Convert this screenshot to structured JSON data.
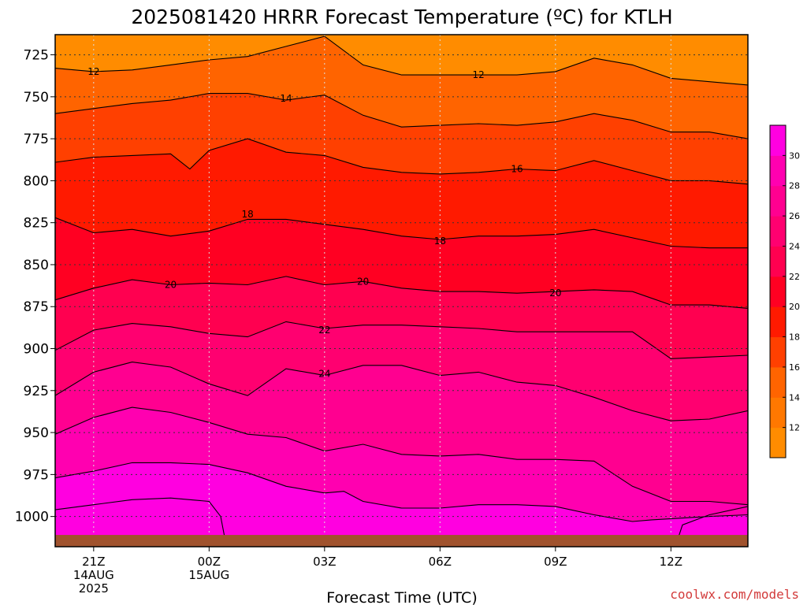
{
  "chart_data": {
    "type": "contour",
    "title": "2025081420 HRRR Forecast Temperature (ºC) for KTLH",
    "xlabel": "Forecast Time (UTC)",
    "ylabel": "",
    "credit": "coolwx.com/models",
    "x_unit_hours_from_start": true,
    "xlim": [
      -1,
      17
    ],
    "ylim": [
      1018,
      713
    ],
    "y_ticks": [
      725,
      750,
      775,
      800,
      825,
      850,
      875,
      900,
      925,
      950,
      975,
      1000
    ],
    "x_ticks": [
      {
        "hour": 0,
        "lines": [
          "21Z",
          "14AUG",
          "2025"
        ]
      },
      {
        "hour": 3,
        "lines": [
          "00Z",
          "15AUG"
        ]
      },
      {
        "hour": 6,
        "lines": [
          "03Z"
        ]
      },
      {
        "hour": 9,
        "lines": [
          "06Z"
        ]
      },
      {
        "hour": 12,
        "lines": [
          "09Z"
        ]
      },
      {
        "hour": 15,
        "lines": [
          "12Z"
        ]
      }
    ],
    "surface_pressure_hpa": 1011,
    "surface_color": "#a0522d",
    "colorbar": {
      "levels": [
        10,
        12,
        14,
        16,
        18,
        20,
        22,
        24,
        26,
        28,
        30,
        32
      ],
      "labels": [
        "12",
        "14",
        "16",
        "18",
        "20",
        "22",
        "24",
        "26",
        "28",
        "30"
      ],
      "colors": [
        "#ff8c00",
        "#ff7800",
        "#ff6400",
        "#ff4000",
        "#ff1a00",
        "#ff0022",
        "#ff0050",
        "#ff0070",
        "#ff0090",
        "#ff00b0",
        "#ff00e0"
      ]
    },
    "grid": true,
    "contours": [
      {
        "level": 12,
        "fill_index": 0,
        "points": [
          [
            -1,
            733
          ],
          [
            0,
            735
          ],
          [
            1,
            734
          ],
          [
            2,
            731
          ],
          [
            3,
            728
          ],
          [
            4,
            726
          ],
          [
            5,
            720
          ],
          [
            6,
            714
          ],
          [
            7,
            731
          ],
          [
            8,
            737
          ],
          [
            9,
            737
          ],
          [
            10,
            737
          ],
          [
            11,
            737
          ],
          [
            12,
            735
          ],
          [
            13,
            727
          ],
          [
            14,
            731
          ],
          [
            15,
            739
          ],
          [
            16,
            741
          ],
          [
            17,
            743
          ]
        ],
        "labels": [
          {
            "hour": 0,
            "p": 735,
            "text": "12"
          },
          {
            "hour": 10,
            "p": 737,
            "text": "12"
          }
        ]
      },
      {
        "level": 14,
        "fill_index": 1,
        "points": [
          [
            -1,
            760
          ],
          [
            0,
            757
          ],
          [
            1,
            754
          ],
          [
            2,
            752
          ],
          [
            3,
            748
          ],
          [
            4,
            748
          ],
          [
            5,
            752
          ],
          [
            6,
            749
          ],
          [
            7,
            761
          ],
          [
            8,
            768
          ],
          [
            9,
            767
          ],
          [
            10,
            766
          ],
          [
            11,
            767
          ],
          [
            12,
            765
          ],
          [
            13,
            760
          ],
          [
            14,
            764
          ],
          [
            15,
            771
          ],
          [
            16,
            771
          ],
          [
            17,
            775
          ]
        ],
        "labels": [
          {
            "hour": 5,
            "p": 751,
            "text": "14"
          }
        ]
      },
      {
        "level": 16,
        "fill_index": 2,
        "points": [
          [
            -1,
            789
          ],
          [
            0,
            786
          ],
          [
            1,
            785
          ],
          [
            2,
            784
          ],
          [
            2.5,
            793
          ],
          [
            3,
            782
          ],
          [
            4,
            775
          ],
          [
            5,
            783
          ],
          [
            6,
            785
          ],
          [
            7,
            792
          ],
          [
            8,
            795
          ],
          [
            9,
            796
          ],
          [
            10,
            795
          ],
          [
            11,
            793
          ],
          [
            12,
            794
          ],
          [
            13,
            788
          ],
          [
            14,
            794
          ],
          [
            15,
            800
          ],
          [
            16,
            800
          ],
          [
            17,
            802
          ]
        ],
        "labels": [
          {
            "hour": 11,
            "p": 793,
            "text": "16"
          }
        ]
      },
      {
        "level": 18,
        "fill_index": 3,
        "points": [
          [
            -1,
            822
          ],
          [
            0,
            831
          ],
          [
            1,
            829
          ],
          [
            2,
            833
          ],
          [
            3,
            830
          ],
          [
            4,
            823
          ],
          [
            5,
            823
          ],
          [
            6,
            826
          ],
          [
            7,
            829
          ],
          [
            8,
            833
          ],
          [
            9,
            835
          ],
          [
            10,
            833
          ],
          [
            11,
            833
          ],
          [
            12,
            832
          ],
          [
            13,
            829
          ],
          [
            14,
            834
          ],
          [
            15,
            839
          ],
          [
            16,
            840
          ],
          [
            17,
            840
          ]
        ],
        "labels": [
          {
            "hour": 4,
            "p": 820,
            "text": "18"
          },
          {
            "hour": 9,
            "p": 836,
            "text": "18"
          }
        ]
      },
      {
        "level": 20,
        "fill_index": 4,
        "points": [
          [
            -1,
            871
          ],
          [
            0,
            864
          ],
          [
            1,
            859
          ],
          [
            2,
            862
          ],
          [
            3,
            861
          ],
          [
            4,
            862
          ],
          [
            5,
            857
          ],
          [
            6,
            862
          ],
          [
            7,
            860
          ],
          [
            8,
            864
          ],
          [
            9,
            866
          ],
          [
            10,
            866
          ],
          [
            11,
            867
          ],
          [
            12,
            866
          ],
          [
            13,
            865
          ],
          [
            14,
            866
          ],
          [
            15,
            874
          ],
          [
            16,
            874
          ],
          [
            17,
            876
          ]
        ],
        "labels": [
          {
            "hour": 2,
            "p": 862,
            "text": "20"
          },
          {
            "hour": 7,
            "p": 860,
            "text": "20"
          },
          {
            "hour": 12,
            "p": 867,
            "text": "20"
          }
        ]
      },
      {
        "level": 22,
        "fill_index": 5,
        "points": [
          [
            -1,
            901
          ],
          [
            0,
            889
          ],
          [
            1,
            885
          ],
          [
            2,
            887
          ],
          [
            3,
            891
          ],
          [
            4,
            893
          ],
          [
            5,
            884
          ],
          [
            6,
            888
          ],
          [
            7,
            886
          ],
          [
            8,
            886
          ],
          [
            9,
            887
          ],
          [
            10,
            888
          ],
          [
            11,
            890
          ],
          [
            12,
            890
          ],
          [
            13,
            890
          ],
          [
            14,
            890
          ],
          [
            15,
            906
          ],
          [
            16,
            905
          ],
          [
            17,
            904
          ]
        ],
        "labels": [
          {
            "hour": 6,
            "p": 889,
            "text": "22"
          }
        ]
      },
      {
        "level": 24,
        "fill_index": 6,
        "points": [
          [
            -1,
            928
          ],
          [
            0,
            914
          ],
          [
            1,
            908
          ],
          [
            2,
            911
          ],
          [
            3,
            921
          ],
          [
            4,
            928
          ],
          [
            5,
            912
          ],
          [
            6,
            916
          ],
          [
            7,
            910
          ],
          [
            8,
            910
          ],
          [
            9,
            916
          ],
          [
            10,
            914
          ],
          [
            11,
            920
          ],
          [
            12,
            922
          ],
          [
            13,
            929
          ],
          [
            14,
            937
          ],
          [
            15,
            943
          ],
          [
            16,
            942
          ],
          [
            17,
            937
          ]
        ],
        "labels": [
          {
            "hour": 6,
            "p": 915,
            "text": "24"
          }
        ]
      },
      {
        "level": 26,
        "fill_index": 7,
        "points": [
          [
            -1,
            951
          ],
          [
            0,
            941
          ],
          [
            1,
            935
          ],
          [
            2,
            938
          ],
          [
            3,
            944
          ],
          [
            4,
            951
          ],
          [
            5,
            953
          ],
          [
            6,
            961
          ],
          [
            7,
            957
          ],
          [
            8,
            963
          ],
          [
            9,
            964
          ],
          [
            10,
            963
          ],
          [
            11,
            966
          ],
          [
            12,
            966
          ],
          [
            13,
            967
          ],
          [
            14,
            982
          ],
          [
            15,
            991
          ],
          [
            16,
            991
          ],
          [
            17,
            993
          ]
        ],
        "labels": []
      },
      {
        "level": 28,
        "fill_index": 8,
        "points": [
          [
            -1,
            977
          ],
          [
            0,
            973
          ],
          [
            1,
            968
          ],
          [
            2,
            968
          ],
          [
            3,
            969
          ],
          [
            4,
            974
          ],
          [
            5,
            982
          ],
          [
            6,
            986
          ],
          [
            6.5,
            985
          ],
          [
            7,
            991
          ],
          [
            8,
            995
          ],
          [
            9,
            995
          ],
          [
            10,
            993
          ],
          [
            11,
            993
          ],
          [
            12,
            994
          ],
          [
            13,
            999
          ],
          [
            14,
            1003
          ],
          [
            14.5,
            1002
          ],
          [
            16,
            1000
          ],
          [
            17,
            999
          ]
        ],
        "labels": []
      }
    ]
  }
}
